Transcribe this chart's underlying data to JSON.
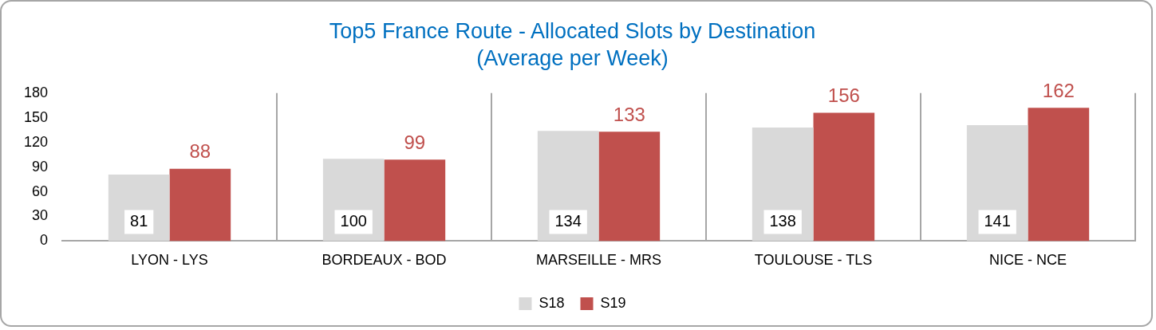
{
  "chart_data": {
    "type": "bar",
    "title": "Top5 France Route - Allocated Slots by Destination",
    "subtitle": "(Average per Week)",
    "categories": [
      "LYON - LYS",
      "BORDEAUX - BOD",
      "MARSEILLE - MRS",
      "TOULOUSE - TLS",
      "NICE - NCE"
    ],
    "series": [
      {
        "name": "S18",
        "color": "#d9d9d9",
        "values": [
          81,
          100,
          134,
          138,
          141
        ]
      },
      {
        "name": "S19",
        "color": "#c0504d",
        "values": [
          88,
          99,
          133,
          156,
          162
        ]
      }
    ],
    "ylim": [
      0,
      180
    ],
    "yticks": [
      0,
      30,
      60,
      90,
      120,
      150,
      180
    ],
    "grid": "x",
    "legend": "bottom",
    "data_labels": true
  }
}
